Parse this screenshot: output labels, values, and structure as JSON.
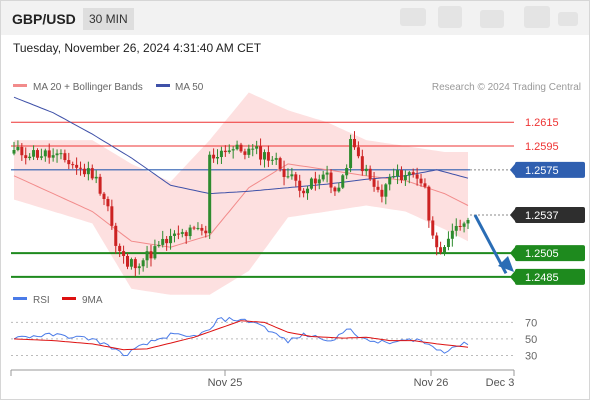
{
  "header": {
    "symbol": "GBP/USD",
    "timeframe": "30 MIN"
  },
  "datetime": "Tuesday, November 26, 2024 4:31:40 AM CET",
  "legend": {
    "bollinger_label": "MA 20 + Bollinger Bands",
    "ma50_label": "MA 50",
    "credit": "Research © 2024 Trading Central",
    "rsi_label": "RSI",
    "rsi_ma_label": "9MA"
  },
  "colors": {
    "bollinger": "#f28b8b",
    "bollinger_fill": "#fde0e0",
    "ma50": "#3f51a8",
    "resistance": "#ee3333",
    "pivot": "#2f5fb0",
    "support": "#1e8a1e",
    "current": "#333333",
    "rsi": "#4a7be8",
    "rsi_ma": "#dd1111",
    "arrow": "#2a6db5",
    "candle_up": "#2e8b2e",
    "candle_down": "#cc2222"
  },
  "chart_data": [
    {
      "type": "candlestick",
      "x_ticks": [
        "Nov 25",
        "Nov 26",
        "Dec 3"
      ],
      "ylim": [
        1.2474,
        1.2632
      ],
      "levels": [
        {
          "name": "resistance-2",
          "value": 1.2615,
          "label": "1.2615",
          "kind": "resistance"
        },
        {
          "name": "resistance-1",
          "value": 1.2595,
          "label": "1.2595",
          "kind": "resistance"
        },
        {
          "name": "pivot",
          "value": 1.2575,
          "label": "1.2575",
          "kind": "pivot"
        },
        {
          "name": "current",
          "value": 1.2537,
          "label": "1.2537",
          "kind": "current"
        },
        {
          "name": "support-1",
          "value": 1.2505,
          "label": "1.2505",
          "kind": "support"
        },
        {
          "name": "support-2",
          "value": 1.2485,
          "label": "1.2485",
          "kind": "support"
        }
      ],
      "close_anchors": [
        [
          0,
          1.259
        ],
        [
          8,
          1.2588
        ],
        [
          14,
          1.2582
        ],
        [
          17,
          1.2575
        ],
        [
          20,
          1.2572
        ],
        [
          22,
          1.256
        ],
        [
          24,
          1.2545
        ],
        [
          26,
          1.251
        ],
        [
          29,
          1.2495
        ],
        [
          33,
          1.25
        ],
        [
          38,
          1.2513
        ],
        [
          42,
          1.252
        ],
        [
          46,
          1.2523
        ],
        [
          49,
          1.2522
        ],
        [
          50,
          1.2585
        ],
        [
          54,
          1.2593
        ],
        [
          62,
          1.259
        ],
        [
          66,
          1.2585
        ],
        [
          70,
          1.257
        ],
        [
          72,
          1.2565
        ],
        [
          74,
          1.256
        ],
        [
          78,
          1.2565
        ],
        [
          80,
          1.2573
        ],
        [
          82,
          1.2556
        ],
        [
          84,
          1.2565
        ],
        [
          86,
          1.2597
        ],
        [
          88,
          1.2585
        ],
        [
          90,
          1.2572
        ],
        [
          92,
          1.256
        ],
        [
          94,
          1.2553
        ],
        [
          96,
          1.2568
        ],
        [
          100,
          1.2572
        ],
        [
          103,
          1.257
        ],
        [
          105,
          1.2562
        ],
        [
          106,
          1.253
        ],
        [
          108,
          1.2515
        ],
        [
          110,
          1.2505
        ],
        [
          112,
          1.252
        ],
        [
          114,
          1.2528
        ],
        [
          116,
          1.2535
        ]
      ],
      "ma20_anchors": [
        [
          0,
          1.257
        ],
        [
          20,
          1.254
        ],
        [
          30,
          1.2515
        ],
        [
          40,
          1.251
        ],
        [
          50,
          1.252
        ],
        [
          60,
          1.256
        ],
        [
          70,
          1.258
        ],
        [
          80,
          1.2575
        ],
        [
          90,
          1.257
        ],
        [
          100,
          1.2566
        ],
        [
          110,
          1.2555
        ],
        [
          116,
          1.2545
        ]
      ],
      "bb_upper_anchors": [
        [
          0,
          1.26
        ],
        [
          20,
          1.26
        ],
        [
          30,
          1.258
        ],
        [
          40,
          1.2565
        ],
        [
          50,
          1.26
        ],
        [
          60,
          1.264
        ],
        [
          70,
          1.2625
        ],
        [
          80,
          1.2615
        ],
        [
          90,
          1.26
        ],
        [
          100,
          1.2595
        ],
        [
          110,
          1.259
        ],
        [
          116,
          1.259
        ]
      ],
      "bb_lower_anchors": [
        [
          0,
          1.255
        ],
        [
          20,
          1.253
        ],
        [
          30,
          1.2475
        ],
        [
          40,
          1.247
        ],
        [
          50,
          1.247
        ],
        [
          60,
          1.249
        ],
        [
          70,
          1.2535
        ],
        [
          80,
          1.254
        ],
        [
          90,
          1.2545
        ],
        [
          100,
          1.254
        ],
        [
          110,
          1.2525
        ],
        [
          116,
          1.2515
        ]
      ],
      "ma50_anchors": [
        [
          0,
          1.2636
        ],
        [
          10,
          1.2623
        ],
        [
          20,
          1.2605
        ],
        [
          30,
          1.2585
        ],
        [
          40,
          1.2562
        ],
        [
          50,
          1.2555
        ],
        [
          60,
          1.2557
        ],
        [
          70,
          1.256
        ],
        [
          80,
          1.2563
        ],
        [
          90,
          1.2567
        ],
        [
          100,
          1.257
        ],
        [
          108,
          1.2575
        ],
        [
          116,
          1.2568
        ]
      ]
    },
    {
      "type": "line",
      "name": "RSI",
      "y_ticks": [
        70,
        50,
        30
      ],
      "ylim": [
        10,
        85
      ],
      "rsi_anchors": [
        [
          0,
          52
        ],
        [
          10,
          55
        ],
        [
          20,
          50
        ],
        [
          25,
          40
        ],
        [
          28,
          30
        ],
        [
          32,
          40
        ],
        [
          36,
          48
        ],
        [
          40,
          55
        ],
        [
          45,
          52
        ],
        [
          50,
          60
        ],
        [
          52,
          73
        ],
        [
          56,
          74
        ],
        [
          62,
          70
        ],
        [
          66,
          58
        ],
        [
          70,
          47
        ],
        [
          74,
          55
        ],
        [
          78,
          52
        ],
        [
          82,
          48
        ],
        [
          84,
          58
        ],
        [
          86,
          64
        ],
        [
          88,
          52
        ],
        [
          90,
          48
        ],
        [
          96,
          45
        ],
        [
          100,
          48
        ],
        [
          103,
          50
        ],
        [
          105,
          45
        ],
        [
          108,
          38
        ],
        [
          110,
          35
        ],
        [
          112,
          40
        ],
        [
          116,
          45
        ]
      ],
      "ma_anchors": [
        [
          0,
          50
        ],
        [
          10,
          48
        ],
        [
          20,
          44
        ],
        [
          28,
          37
        ],
        [
          34,
          38
        ],
        [
          40,
          45
        ],
        [
          46,
          52
        ],
        [
          52,
          62
        ],
        [
          58,
          72
        ],
        [
          64,
          70
        ],
        [
          70,
          58
        ],
        [
          76,
          53
        ],
        [
          84,
          51
        ],
        [
          90,
          52
        ],
        [
          96,
          48
        ],
        [
          102,
          48
        ],
        [
          108,
          44
        ],
        [
          116,
          40
        ]
      ]
    }
  ]
}
